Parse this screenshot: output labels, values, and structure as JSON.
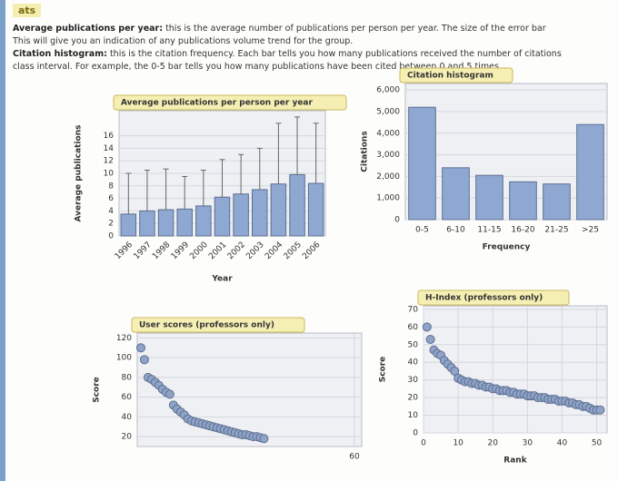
{
  "page": {
    "heading": "ats",
    "lines": [
      {
        "term": "Average publications per year:",
        "text": "this is the average number of publications per person per year. The size of the error bar"
      },
      {
        "text": "This will give you an indication of any publications volume trend for the group."
      },
      {
        "term": "Citation histogram:",
        "text": "this is the citation frequency. Each bar tells you how many publications received the number of citations"
      },
      {
        "text": "class interval. For example, the 0-5 bar tells you how many publications have been cited between 0 and 5 times."
      }
    ]
  },
  "chart_data": [
    {
      "type": "bar",
      "title": "Average publications per person per year",
      "xlabel": "Year",
      "ylabel": "Average publications",
      "categories": [
        "1996",
        "1997",
        "1998",
        "1999",
        "2000",
        "2001",
        "2002",
        "2003",
        "2004",
        "2005",
        "2006"
      ],
      "values": [
        3.5,
        4,
        4.2,
        4.3,
        4.8,
        6.2,
        6.7,
        7.4,
        8.3,
        9.8,
        8.4
      ],
      "errors": [
        6.5,
        6.5,
        6.5,
        5.2,
        5.7,
        6,
        6.3,
        6.6,
        9.7,
        9.2,
        9.6
      ],
      "color": "#8ea8d2",
      "ylim": [
        0,
        20
      ],
      "yticks": [
        0,
        2,
        4,
        6,
        8,
        10,
        12,
        14,
        16
      ],
      "grid": true
    },
    {
      "type": "bar",
      "title": "Citation histogram",
      "xlabel": "Frequency",
      "ylabel": "Citations",
      "categories": [
        "0-5",
        "6-10",
        "11-15",
        "16-20",
        "21-25",
        ">25"
      ],
      "values": [
        5200,
        2400,
        2050,
        1750,
        1650,
        4400
      ],
      "color": "#8ea8d2",
      "ylim": [
        0,
        6300
      ],
      "yticks": [
        0,
        {
          "value": 1000,
          "label": "1,000"
        },
        {
          "value": 2000,
          "label": "2,000"
        },
        {
          "value": 3000,
          "label": "3,000"
        },
        {
          "value": 4000,
          "label": "4,000"
        },
        {
          "value": 5000,
          "label": "5,000"
        },
        {
          "value": 6000,
          "label": "6,000"
        }
      ],
      "grid": true
    },
    {
      "type": "scatter",
      "title": "User scores (professors only)",
      "ylabel": "Score",
      "x": [
        1,
        2,
        3,
        4,
        5,
        6,
        7,
        8,
        9,
        10,
        11,
        12,
        13,
        14,
        15,
        16,
        17,
        18,
        19,
        20,
        21,
        22,
        23,
        24,
        25,
        26,
        27,
        28,
        29,
        30,
        31,
        32,
        33,
        34,
        35
      ],
      "values": [
        110,
        98,
        80,
        78,
        75,
        72,
        68,
        65,
        63,
        52,
        48,
        45,
        42,
        38,
        36,
        35,
        34,
        33,
        32,
        31,
        30,
        29,
        28,
        27,
        26,
        25,
        24,
        23,
        22,
        22,
        21,
        20,
        20,
        19,
        18
      ],
      "color": "#8fa3c8",
      "xlim": [
        0,
        62
      ],
      "xticks": [
        60
      ],
      "ylim": [
        10,
        125
      ],
      "yticks": [
        20,
        40,
        60,
        80,
        100,
        120
      ],
      "grid": true
    },
    {
      "type": "scatter",
      "title": "H-Index (professors only)",
      "xlabel": "Rank",
      "ylabel": "Score",
      "x": [
        1,
        2,
        3,
        4,
        5,
        6,
        7,
        8,
        9,
        10,
        11,
        12,
        13,
        14,
        15,
        16,
        17,
        18,
        19,
        20,
        21,
        22,
        23,
        24,
        25,
        26,
        27,
        28,
        29,
        30,
        31,
        32,
        33,
        34,
        35,
        36,
        37,
        38,
        39,
        40,
        41,
        42,
        43,
        44,
        45,
        46,
        47,
        48,
        49,
        50,
        51
      ],
      "values": [
        60,
        53,
        47,
        45,
        44,
        41,
        39,
        37,
        35,
        31,
        30,
        29,
        29,
        28,
        28,
        27,
        27,
        26,
        26,
        25,
        25,
        24,
        24,
        24,
        23,
        23,
        22,
        22,
        22,
        21,
        21,
        21,
        20,
        20,
        20,
        19,
        19,
        19,
        18,
        18,
        18,
        17,
        17,
        16,
        16,
        15,
        15,
        14,
        13,
        13,
        13
      ],
      "color": "#8fa3c8",
      "xlim": [
        0,
        53
      ],
      "xticks": [
        0,
        10,
        20,
        30,
        40,
        50
      ],
      "ylim": [
        0,
        72
      ],
      "yticks": [
        0,
        10,
        20,
        30,
        40,
        50,
        60,
        70
      ],
      "grid": true
    }
  ]
}
